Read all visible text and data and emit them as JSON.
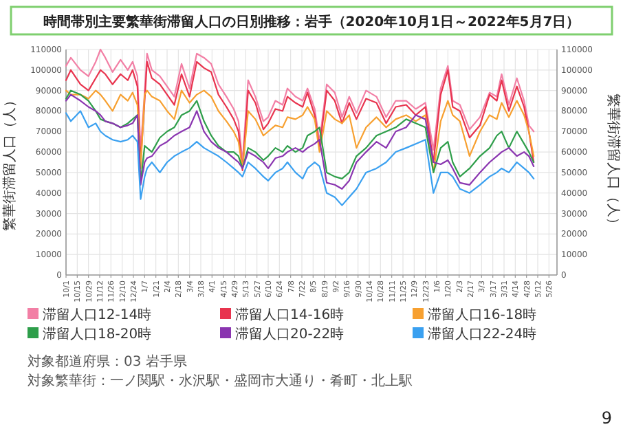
{
  "chart_data": {
    "type": "line",
    "title": "時間帯別主要繁華街滞留人口の日別推移：岩手（2020年10月1日～2022年5月7日）",
    "ylabel": "繁華街滞留人口（人）",
    "y2label": "繁華街滞留人口（人）",
    "x": [
      "2020-10-01",
      "2020-10-07",
      "2020-10-19",
      "2020-10-29",
      "2020-11-07",
      "2020-11-13",
      "2020-11-19",
      "2020-11-28",
      "2020-12-08",
      "2020-12-17",
      "2020-12-23",
      "2020-12-29",
      "2021-01-02",
      "2021-01-07",
      "2021-01-10",
      "2021-01-16",
      "2021-01-26",
      "2021-02-04",
      "2021-02-13",
      "2021-02-22",
      "2021-03-04",
      "2021-03-13",
      "2021-03-22",
      "2021-03-31",
      "2021-04-09",
      "2021-04-19",
      "2021-04-28",
      "2021-05-04",
      "2021-05-09",
      "2021-05-16",
      "2021-05-25",
      "2021-06-04",
      "2021-06-10",
      "2021-06-19",
      "2021-06-28",
      "2021-07-04",
      "2021-07-14",
      "2021-07-23",
      "2021-07-29",
      "2021-08-07",
      "2021-08-13",
      "2021-08-22",
      "2021-09-01",
      "2021-09-10",
      "2021-09-19",
      "2021-09-28",
      "2021-10-10",
      "2021-10-23",
      "2021-11-04",
      "2021-11-16",
      "2021-11-29",
      "2021-12-11",
      "2021-12-23",
      "2022-01-02",
      "2022-01-11",
      "2022-01-20",
      "2022-01-26",
      "2022-02-04",
      "2022-02-16",
      "2022-03-01",
      "2022-03-13",
      "2022-03-22",
      "2022-03-28",
      "2022-04-06",
      "2022-04-16",
      "2022-04-25",
      "2022-05-01",
      "2022-05-07"
    ],
    "series": [
      {
        "name": "滞留人口12-14時",
        "color": "#f27fa5",
        "values": [
          102000,
          106000,
          100000,
          97000,
          104000,
          110000,
          106000,
          99000,
          105000,
          100000,
          104000,
          97000,
          61000,
          89000,
          108000,
          100000,
          97000,
          92000,
          87000,
          103000,
          91000,
          108000,
          106000,
          103000,
          93000,
          87000,
          81000,
          75000,
          55000,
          95000,
          87000,
          75000,
          77000,
          85000,
          83000,
          91000,
          87000,
          85000,
          91000,
          81000,
          65000,
          93000,
          89000,
          77000,
          87000,
          79000,
          90000,
          87000,
          77000,
          85000,
          85000,
          81000,
          84000,
          61000,
          91000,
          102000,
          85000,
          83000,
          71000,
          77000,
          89000,
          87000,
          98000,
          83000,
          96000,
          85000,
          73000,
          70000
        ]
      },
      {
        "name": "滞留人口14-16時",
        "color": "#e8344e",
        "values": [
          95000,
          100000,
          93000,
          90000,
          96000,
          100000,
          98000,
          93000,
          98000,
          95000,
          100000,
          92000,
          55000,
          85000,
          104000,
          96000,
          93000,
          88000,
          83000,
          98000,
          87000,
          104000,
          101000,
          99000,
          88000,
          82000,
          76000,
          70000,
          51000,
          90000,
          84000,
          71000,
          74000,
          81000,
          80000,
          87000,
          84000,
          82000,
          89000,
          78000,
          62000,
          90000,
          85000,
          74000,
          84000,
          76000,
          86000,
          84000,
          74000,
          82000,
          83000,
          78000,
          82000,
          55000,
          88000,
          100000,
          82000,
          80000,
          67000,
          73000,
          88000,
          85000,
          95000,
          80000,
          92000,
          82000,
          70000,
          55000
        ]
      },
      {
        "name": "滞留人口16-18時",
        "color": "#f7a030",
        "values": [
          90000,
          88000,
          88000,
          86000,
          90000,
          88000,
          85000,
          80000,
          88000,
          85000,
          89000,
          83000,
          52000,
          88000,
          90000,
          87000,
          85000,
          80000,
          76000,
          90000,
          84000,
          88000,
          90000,
          87000,
          80000,
          75000,
          70000,
          65000,
          52000,
          80000,
          76000,
          68000,
          70000,
          73000,
          72000,
          77000,
          76000,
          78000,
          82000,
          76000,
          60000,
          80000,
          76000,
          74000,
          78000,
          62000,
          72000,
          77000,
          72000,
          76000,
          78000,
          75000,
          78000,
          50000,
          75000,
          85000,
          78000,
          75000,
          58000,
          70000,
          78000,
          76000,
          84000,
          77000,
          85000,
          78000,
          70000,
          58000
        ]
      },
      {
        "name": "滞留人口18-20時",
        "color": "#2e9e4a",
        "values": [
          86000,
          90000,
          88000,
          85000,
          80000,
          76000,
          75000,
          74000,
          72000,
          74000,
          76000,
          78000,
          45000,
          63000,
          62000,
          60000,
          67000,
          70000,
          72000,
          78000,
          80000,
          85000,
          75000,
          68000,
          63000,
          60000,
          60000,
          58000,
          52000,
          62000,
          60000,
          56000,
          58000,
          62000,
          60000,
          63000,
          60000,
          62000,
          68000,
          70000,
          72000,
          50000,
          48000,
          47000,
          50000,
          58000,
          62000,
          68000,
          70000,
          72000,
          76000,
          74000,
          72000,
          50000,
          62000,
          65000,
          55000,
          48000,
          52000,
          58000,
          62000,
          68000,
          70000,
          62000,
          70000,
          64000,
          60000,
          55000
        ]
      },
      {
        "name": "滞留人口20-22時",
        "color": "#8a35b0",
        "values": [
          85000,
          88000,
          85000,
          82000,
          80000,
          78000,
          75000,
          74000,
          72000,
          73000,
          74000,
          78000,
          44000,
          55000,
          57000,
          58000,
          63000,
          65000,
          68000,
          70000,
          72000,
          80000,
          70000,
          65000,
          62000,
          60000,
          57000,
          55000,
          52000,
          60000,
          58000,
          55000,
          52000,
          57000,
          58000,
          60000,
          62000,
          60000,
          62000,
          64000,
          66000,
          45000,
          44000,
          42000,
          46000,
          55000,
          60000,
          65000,
          62000,
          70000,
          72000,
          78000,
          76000,
          55000,
          54000,
          56000,
          52000,
          45000,
          44000,
          50000,
          55000,
          58000,
          60000,
          62000,
          58000,
          60000,
          58000,
          53000
        ]
      },
      {
        "name": "滞留人口22-24時",
        "color": "#3aa0f0",
        "values": [
          79000,
          75000,
          80000,
          72000,
          74000,
          70000,
          68000,
          66000,
          65000,
          66000,
          68000,
          65000,
          37000,
          48000,
          52000,
          55000,
          50000,
          55000,
          58000,
          60000,
          62000,
          65000,
          62000,
          60000,
          58000,
          55000,
          52000,
          50000,
          48000,
          55000,
          52000,
          48000,
          46000,
          50000,
          52000,
          55000,
          50000,
          47000,
          52000,
          55000,
          53000,
          40000,
          38000,
          34000,
          38000,
          42000,
          50000,
          52000,
          55000,
          60000,
          62000,
          64000,
          66000,
          40000,
          50000,
          50000,
          48000,
          42000,
          40000,
          44000,
          48000,
          50000,
          52000,
          50000,
          55000,
          52000,
          50000,
          47000
        ]
      }
    ],
    "xlim": [
      "2020-10-01",
      "2022-06-05"
    ],
    "xticks": [
      {
        "value": "2020-10-01",
        "label": "10/1"
      },
      {
        "value": "2020-10-15",
        "label": "10/15"
      },
      {
        "value": "2020-10-29",
        "label": "10/29"
      },
      {
        "value": "2020-11-12",
        "label": "11/12"
      },
      {
        "value": "2020-11-26",
        "label": "11/26"
      },
      {
        "value": "2020-12-10",
        "label": "12/10"
      },
      {
        "value": "2020-12-24",
        "label": "12/24"
      },
      {
        "value": "2021-01-07",
        "label": "1/7"
      },
      {
        "value": "2021-01-21",
        "label": "1/21"
      },
      {
        "value": "2021-02-04",
        "label": "2/4"
      },
      {
        "value": "2021-02-18",
        "label": "2/18"
      },
      {
        "value": "2021-03-04",
        "label": "3/4"
      },
      {
        "value": "2021-03-18",
        "label": "3/18"
      },
      {
        "value": "2021-04-01",
        "label": "4/1"
      },
      {
        "value": "2021-04-15",
        "label": "4/15"
      },
      {
        "value": "2021-04-29",
        "label": "4/29"
      },
      {
        "value": "2021-05-13",
        "label": "5/13"
      },
      {
        "value": "2021-05-27",
        "label": "5/27"
      },
      {
        "value": "2021-06-10",
        "label": "6/10"
      },
      {
        "value": "2021-06-24",
        "label": "6/24"
      },
      {
        "value": "2021-07-08",
        "label": "7/8"
      },
      {
        "value": "2021-07-22",
        "label": "7/22"
      },
      {
        "value": "2021-08-05",
        "label": "8/5"
      },
      {
        "value": "2021-08-19",
        "label": "8/19"
      },
      {
        "value": "2021-09-02",
        "label": "9/2"
      },
      {
        "value": "2021-09-16",
        "label": "9/16"
      },
      {
        "value": "2021-09-30",
        "label": "9/30"
      },
      {
        "value": "2021-10-14",
        "label": "10/14"
      },
      {
        "value": "2021-10-28",
        "label": "10/28"
      },
      {
        "value": "2021-11-11",
        "label": "11/11"
      },
      {
        "value": "2021-11-25",
        "label": "11/25"
      },
      {
        "value": "2021-12-09",
        "label": "12/9"
      },
      {
        "value": "2021-12-23",
        "label": "12/23"
      },
      {
        "value": "2022-01-06",
        "label": "1/6"
      },
      {
        "value": "2022-01-20",
        "label": "1/20"
      },
      {
        "value": "2022-02-03",
        "label": "2/3"
      },
      {
        "value": "2022-02-17",
        "label": "2/17"
      },
      {
        "value": "2022-03-03",
        "label": "3/3"
      },
      {
        "value": "2022-03-17",
        "label": "3/17"
      },
      {
        "value": "2022-03-31",
        "label": "3/31"
      },
      {
        "value": "2022-04-14",
        "label": "4/14"
      },
      {
        "value": "2022-04-28",
        "label": "4/28"
      },
      {
        "value": "2022-05-12",
        "label": "5/12"
      },
      {
        "value": "2022-05-26",
        "label": "5/26"
      }
    ],
    "ylim": [
      0,
      110000
    ],
    "yticks": [
      0,
      10000,
      20000,
      30000,
      40000,
      50000,
      60000,
      70000,
      80000,
      90000,
      100000,
      110000
    ],
    "y2lim": [
      0,
      110000
    ],
    "y2ticks": [
      0,
      10000,
      20000,
      30000,
      40000,
      50000,
      60000,
      70000,
      80000,
      90000,
      100000,
      110000
    ],
    "grid": true,
    "legend": "bottom",
    "annotations": [
      "対象都道府県：03 岩手県",
      "対象繁華街：一ノ関駅・水沢駅・盛岡市大通り・肴町・北上駅",
      "9"
    ]
  }
}
